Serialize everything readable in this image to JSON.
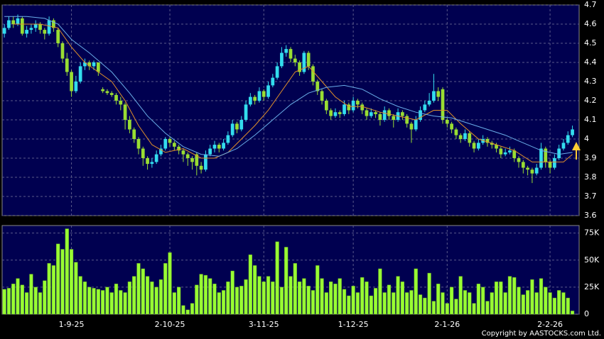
{
  "chart_data": {
    "type": "candlestick",
    "xlim": [
      -0.5,
      128.5
    ],
    "xticks": [
      {
        "value": 15,
        "label": "1-9-25"
      },
      {
        "value": 37,
        "label": "2-10-25"
      },
      {
        "value": 58,
        "label": "3-11-25"
      },
      {
        "value": 78,
        "label": "1-12-25"
      },
      {
        "value": 99,
        "label": "2-1-26"
      },
      {
        "value": 122,
        "label": "2-2-26"
      }
    ],
    "ylim": [
      3.6,
      4.7
    ],
    "yticks": [
      3.6,
      3.7,
      3.8,
      3.9,
      4,
      4.1,
      4.2,
      4.3,
      4.4,
      4.5,
      4.6,
      4.7
    ],
    "grid": true,
    "up_color": "#33ddee",
    "down_color": "#99dd33",
    "ohlc": [
      [
        4.55,
        4.6,
        4.53,
        4.58
      ],
      [
        4.58,
        4.64,
        4.57,
        4.62
      ],
      [
        4.62,
        4.64,
        4.58,
        4.6
      ],
      [
        4.6,
        4.65,
        4.59,
        4.63
      ],
      [
        4.63,
        4.64,
        4.54,
        4.55
      ],
      [
        4.55,
        4.59,
        4.53,
        4.57
      ],
      [
        4.57,
        4.6,
        4.55,
        4.58
      ],
      [
        4.58,
        4.62,
        4.56,
        4.6
      ],
      [
        4.6,
        4.61,
        4.55,
        4.57
      ],
      [
        4.57,
        4.58,
        4.52,
        4.55
      ],
      [
        4.55,
        4.64,
        4.54,
        4.62
      ],
      [
        4.62,
        4.63,
        4.56,
        4.58
      ],
      [
        4.57,
        4.58,
        4.48,
        4.5
      ],
      [
        4.5,
        4.51,
        4.4,
        4.42
      ],
      [
        4.42,
        4.45,
        4.33,
        4.35
      ],
      [
        4.35,
        4.36,
        4.22,
        4.25
      ],
      [
        4.25,
        4.33,
        4.24,
        4.3
      ],
      [
        4.3,
        4.4,
        4.29,
        4.38
      ],
      [
        4.38,
        4.42,
        4.36,
        4.4
      ],
      [
        4.4,
        4.41,
        4.36,
        4.38
      ],
      [
        4.38,
        4.41,
        4.36,
        4.4
      ],
      [
        4.4,
        4.4,
        4.33,
        4.35
      ],
      [
        4.26,
        4.27,
        4.24,
        4.25
      ],
      [
        4.25,
        4.26,
        4.23,
        4.24
      ],
      [
        4.24,
        4.25,
        4.22,
        4.23
      ],
      [
        4.23,
        4.24,
        4.18,
        4.2
      ],
      [
        4.2,
        4.22,
        4.15,
        4.18
      ],
      [
        4.18,
        4.19,
        4.05,
        4.1
      ],
      [
        4.1,
        4.12,
        4.03,
        4.05
      ],
      [
        4.05,
        4.06,
        3.98,
        4.0
      ],
      [
        4.0,
        4.01,
        3.92,
        3.95
      ],
      [
        3.95,
        3.96,
        3.86,
        3.9
      ],
      [
        3.9,
        3.91,
        3.84,
        3.87
      ],
      [
        3.87,
        3.9,
        3.85,
        3.88
      ],
      [
        3.88,
        3.94,
        3.87,
        3.92
      ],
      [
        3.92,
        3.97,
        3.91,
        3.95
      ],
      [
        3.95,
        4.01,
        3.94,
        4.0
      ],
      [
        4.0,
        4.01,
        3.96,
        3.98
      ],
      [
        3.98,
        3.99,
        3.94,
        3.96
      ],
      [
        3.96,
        3.97,
        3.92,
        3.94
      ],
      [
        3.94,
        3.95,
        3.88,
        3.92
      ],
      [
        3.92,
        3.93,
        3.86,
        3.9
      ],
      [
        3.9,
        3.91,
        3.84,
        3.88
      ],
      [
        3.92,
        3.93,
        3.81,
        3.86
      ],
      [
        3.86,
        3.88,
        3.82,
        3.84
      ],
      [
        3.84,
        3.94,
        3.83,
        3.92
      ],
      [
        3.92,
        3.97,
        3.91,
        3.95
      ],
      [
        3.95,
        3.99,
        3.93,
        3.97
      ],
      [
        3.97,
        3.98,
        3.93,
        3.95
      ],
      [
        3.95,
        4.0,
        3.94,
        3.98
      ],
      [
        3.98,
        4.04,
        3.97,
        4.02
      ],
      [
        4.02,
        4.1,
        4.01,
        4.08
      ],
      [
        4.08,
        4.09,
        4.03,
        4.05
      ],
      [
        4.05,
        4.12,
        4.04,
        4.1
      ],
      [
        4.1,
        4.2,
        4.09,
        4.18
      ],
      [
        4.18,
        4.24,
        4.17,
        4.22
      ],
      [
        4.22,
        4.23,
        4.18,
        4.2
      ],
      [
        4.2,
        4.27,
        4.19,
        4.25
      ],
      [
        4.25,
        4.26,
        4.2,
        4.22
      ],
      [
        4.22,
        4.3,
        4.21,
        4.28
      ],
      [
        4.28,
        4.34,
        4.27,
        4.32
      ],
      [
        4.32,
        4.4,
        4.31,
        4.38
      ],
      [
        4.38,
        4.48,
        4.37,
        4.45
      ],
      [
        4.45,
        4.49,
        4.43,
        4.47
      ],
      [
        4.47,
        4.48,
        4.4,
        4.42
      ],
      [
        4.42,
        4.44,
        4.38,
        4.4
      ],
      [
        4.4,
        4.41,
        4.33,
        4.35
      ],
      [
        4.35,
        4.46,
        4.34,
        4.45
      ],
      [
        4.45,
        4.46,
        4.36,
        4.38
      ],
      [
        4.38,
        4.39,
        4.28,
        4.3
      ],
      [
        4.3,
        4.31,
        4.23,
        4.25
      ],
      [
        4.25,
        4.26,
        4.18,
        4.2
      ],
      [
        4.2,
        4.21,
        4.13,
        4.15
      ],
      [
        4.15,
        4.16,
        4.1,
        4.12
      ],
      [
        4.12,
        4.16,
        4.11,
        4.14
      ],
      [
        4.14,
        4.15,
        4.11,
        4.13
      ],
      [
        4.13,
        4.2,
        4.12,
        4.18
      ],
      [
        4.18,
        4.19,
        4.13,
        4.15
      ],
      [
        4.15,
        4.22,
        4.14,
        4.2
      ],
      [
        4.2,
        4.21,
        4.16,
        4.18
      ],
      [
        4.18,
        4.19,
        4.13,
        4.15
      ],
      [
        4.15,
        4.16,
        4.1,
        4.12
      ],
      [
        4.12,
        4.16,
        4.11,
        4.14
      ],
      [
        4.14,
        4.15,
        4.11,
        4.13
      ],
      [
        4.13,
        4.14,
        4.07,
        4.1
      ],
      [
        4.1,
        4.17,
        4.09,
        4.15
      ],
      [
        4.15,
        4.16,
        4.1,
        4.12
      ],
      [
        4.12,
        4.13,
        4.06,
        4.1
      ],
      [
        4.1,
        4.16,
        4.09,
        4.14
      ],
      [
        4.14,
        4.15,
        4.1,
        4.12
      ],
      [
        4.12,
        4.13,
        4.06,
        4.08
      ],
      [
        4.08,
        4.09,
        3.98,
        4.05
      ],
      [
        4.05,
        4.12,
        4.04,
        4.1
      ],
      [
        4.1,
        4.17,
        4.09,
        4.15
      ],
      [
        4.15,
        4.2,
        4.14,
        4.18
      ],
      [
        4.18,
        4.24,
        4.17,
        4.2
      ],
      [
        4.2,
        4.34,
        4.19,
        4.25
      ],
      [
        4.25,
        4.27,
        4.2,
        4.22
      ],
      [
        4.26,
        4.27,
        4.08,
        4.1
      ],
      [
        4.1,
        4.11,
        4.06,
        4.08
      ],
      [
        4.08,
        4.09,
        4.03,
        4.05
      ],
      [
        4.05,
        4.06,
        4.0,
        4.02
      ],
      [
        4.02,
        4.03,
        3.98,
        4.0
      ],
      [
        4.0,
        4.05,
        3.99,
        4.03
      ],
      [
        4.03,
        4.04,
        3.96,
        3.98
      ],
      [
        3.98,
        3.99,
        3.93,
        3.95
      ],
      [
        3.95,
        4.0,
        3.94,
        3.98
      ],
      [
        3.98,
        4.02,
        3.97,
        4.0
      ],
      [
        4.0,
        4.01,
        3.96,
        3.98
      ],
      [
        3.98,
        3.99,
        3.95,
        3.97
      ],
      [
        3.97,
        3.98,
        3.93,
        3.95
      ],
      [
        3.95,
        3.96,
        3.9,
        3.92
      ],
      [
        3.92,
        3.95,
        3.91,
        3.93
      ],
      [
        3.93,
        3.96,
        3.92,
        3.94
      ],
      [
        3.94,
        3.95,
        3.88,
        3.9
      ],
      [
        3.9,
        3.91,
        3.85,
        3.88
      ],
      [
        3.88,
        3.89,
        3.82,
        3.85
      ],
      [
        3.85,
        3.86,
        3.81,
        3.84
      ],
      [
        3.84,
        3.85,
        3.77,
        3.82
      ],
      [
        3.82,
        3.87,
        3.81,
        3.85
      ],
      [
        3.85,
        3.98,
        3.84,
        3.95
      ],
      [
        3.95,
        3.96,
        3.85,
        3.88
      ],
      [
        3.88,
        3.89,
        3.82,
        3.85
      ],
      [
        3.85,
        3.92,
        3.84,
        3.9
      ],
      [
        3.9,
        3.97,
        3.89,
        3.95
      ],
      [
        3.95,
        4.0,
        3.94,
        3.98
      ],
      [
        3.98,
        4.04,
        3.97,
        4.02
      ],
      [
        4.02,
        4.07,
        4.01,
        4.05
      ]
    ],
    "ma_lines": [
      {
        "color": "#e0902a",
        "x": [
          2,
          8,
          12,
          15,
          18,
          21,
          24,
          27,
          30,
          33,
          36,
          40,
          44,
          47,
          50,
          53,
          56,
          59,
          62,
          65,
          68,
          71,
          74,
          77,
          80,
          84,
          88,
          92,
          96,
          99,
          102,
          106,
          110,
          114,
          118,
          122,
          125,
          127
        ],
        "values": [
          4.6,
          4.6,
          4.58,
          4.48,
          4.4,
          4.35,
          4.3,
          4.2,
          4.07,
          3.97,
          3.93,
          3.95,
          3.9,
          3.9,
          3.93,
          4.0,
          4.07,
          4.15,
          4.25,
          4.35,
          4.38,
          4.3,
          4.22,
          4.17,
          4.17,
          4.14,
          4.12,
          4.1,
          4.15,
          4.15,
          4.08,
          4.0,
          3.97,
          3.94,
          3.88,
          3.88,
          3.88,
          3.92
        ]
      },
      {
        "color": "#6aaee8",
        "x": [
          0,
          5,
          9,
          12,
          15,
          19,
          24,
          28,
          32,
          36,
          40,
          44,
          48,
          52,
          56,
          60,
          64,
          68,
          72,
          76,
          80,
          84,
          88,
          92,
          96,
          100,
          104,
          108,
          112,
          116,
          120,
          124,
          127
        ],
        "values": [
          4.64,
          4.64,
          4.63,
          4.6,
          4.52,
          4.45,
          4.35,
          4.24,
          4.12,
          4.03,
          3.96,
          3.92,
          3.91,
          3.95,
          4.02,
          4.1,
          4.18,
          4.24,
          4.27,
          4.28,
          4.26,
          4.21,
          4.17,
          4.14,
          4.12,
          4.11,
          4.08,
          4.05,
          4.02,
          3.98,
          3.94,
          3.92,
          3.93
        ]
      }
    ],
    "volume": {
      "color": "#99ff33",
      "ylim": [
        0,
        82000
      ],
      "yticks": [
        0,
        {
          "value": 25000,
          "label": "25K"
        },
        {
          "value": 50000,
          "label": "50K"
        },
        {
          "value": 75000,
          "label": "75K"
        }
      ],
      "values": [
        23000,
        24000,
        28000,
        33000,
        27000,
        20000,
        37000,
        25000,
        20000,
        31000,
        47000,
        45000,
        65000,
        60000,
        79000,
        60000,
        48000,
        35000,
        30000,
        25000,
        24000,
        23000,
        22000,
        25000,
        20000,
        28000,
        22000,
        20000,
        30000,
        35000,
        47000,
        42000,
        35000,
        30000,
        25000,
        32000,
        47000,
        57000,
        20000,
        25000,
        8000,
        4000,
        10000,
        27000,
        37000,
        36000,
        33000,
        28000,
        20000,
        22000,
        30000,
        40000,
        25000,
        26000,
        32000,
        55000,
        45000,
        35000,
        30000,
        35000,
        30000,
        67000,
        25000,
        62000,
        35000,
        47000,
        30000,
        33000,
        26000,
        22000,
        45000,
        33000,
        20000,
        30000,
        28000,
        33000,
        23000,
        17000,
        26000,
        20000,
        34000,
        30000,
        17000,
        24000,
        42000,
        20000,
        27000,
        20000,
        35000,
        30000,
        20000,
        22000,
        42000,
        18000,
        15000,
        38000,
        12000,
        28000,
        20000,
        10000,
        25000,
        14000,
        35000,
        22000,
        20000,
        10000,
        28000,
        25000,
        12000,
        20000,
        30000,
        30000,
        20000,
        35000,
        34000,
        25000,
        18000,
        22000,
        32000,
        20000,
        33000,
        25000,
        20000,
        15000,
        22000,
        20000,
        15000,
        3000
      ]
    }
  },
  "footer": {
    "copyright": "Copyright by AASTOCKS.com Ltd."
  }
}
